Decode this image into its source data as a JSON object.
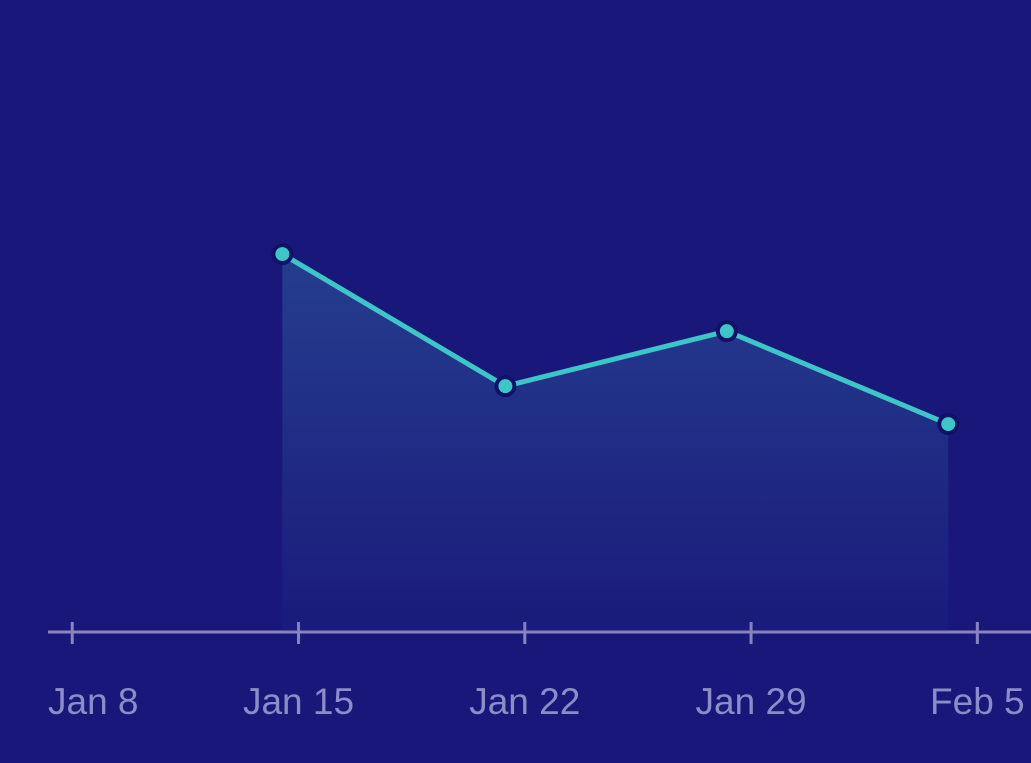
{
  "chart_data": {
    "type": "area-line",
    "x": [
      14.5,
      21.4,
      28.25,
      35.1
    ],
    "series": [
      {
        "color": "#3cc6c8",
        "values": [
          59.8,
          38.9,
          47.6,
          32.9
        ]
      }
    ],
    "xlim": [
      7.25,
      37.66
    ],
    "xticks": [
      {
        "value": 8,
        "label": "Jan 8"
      },
      {
        "value": 15,
        "label": "Jan 15"
      },
      {
        "value": 22,
        "label": "Jan 22"
      },
      {
        "value": 29,
        "label": "Jan 29"
      },
      {
        "value": 36,
        "label": "Feb 5"
      }
    ],
    "ylim": [
      0,
      100
    ]
  }
}
